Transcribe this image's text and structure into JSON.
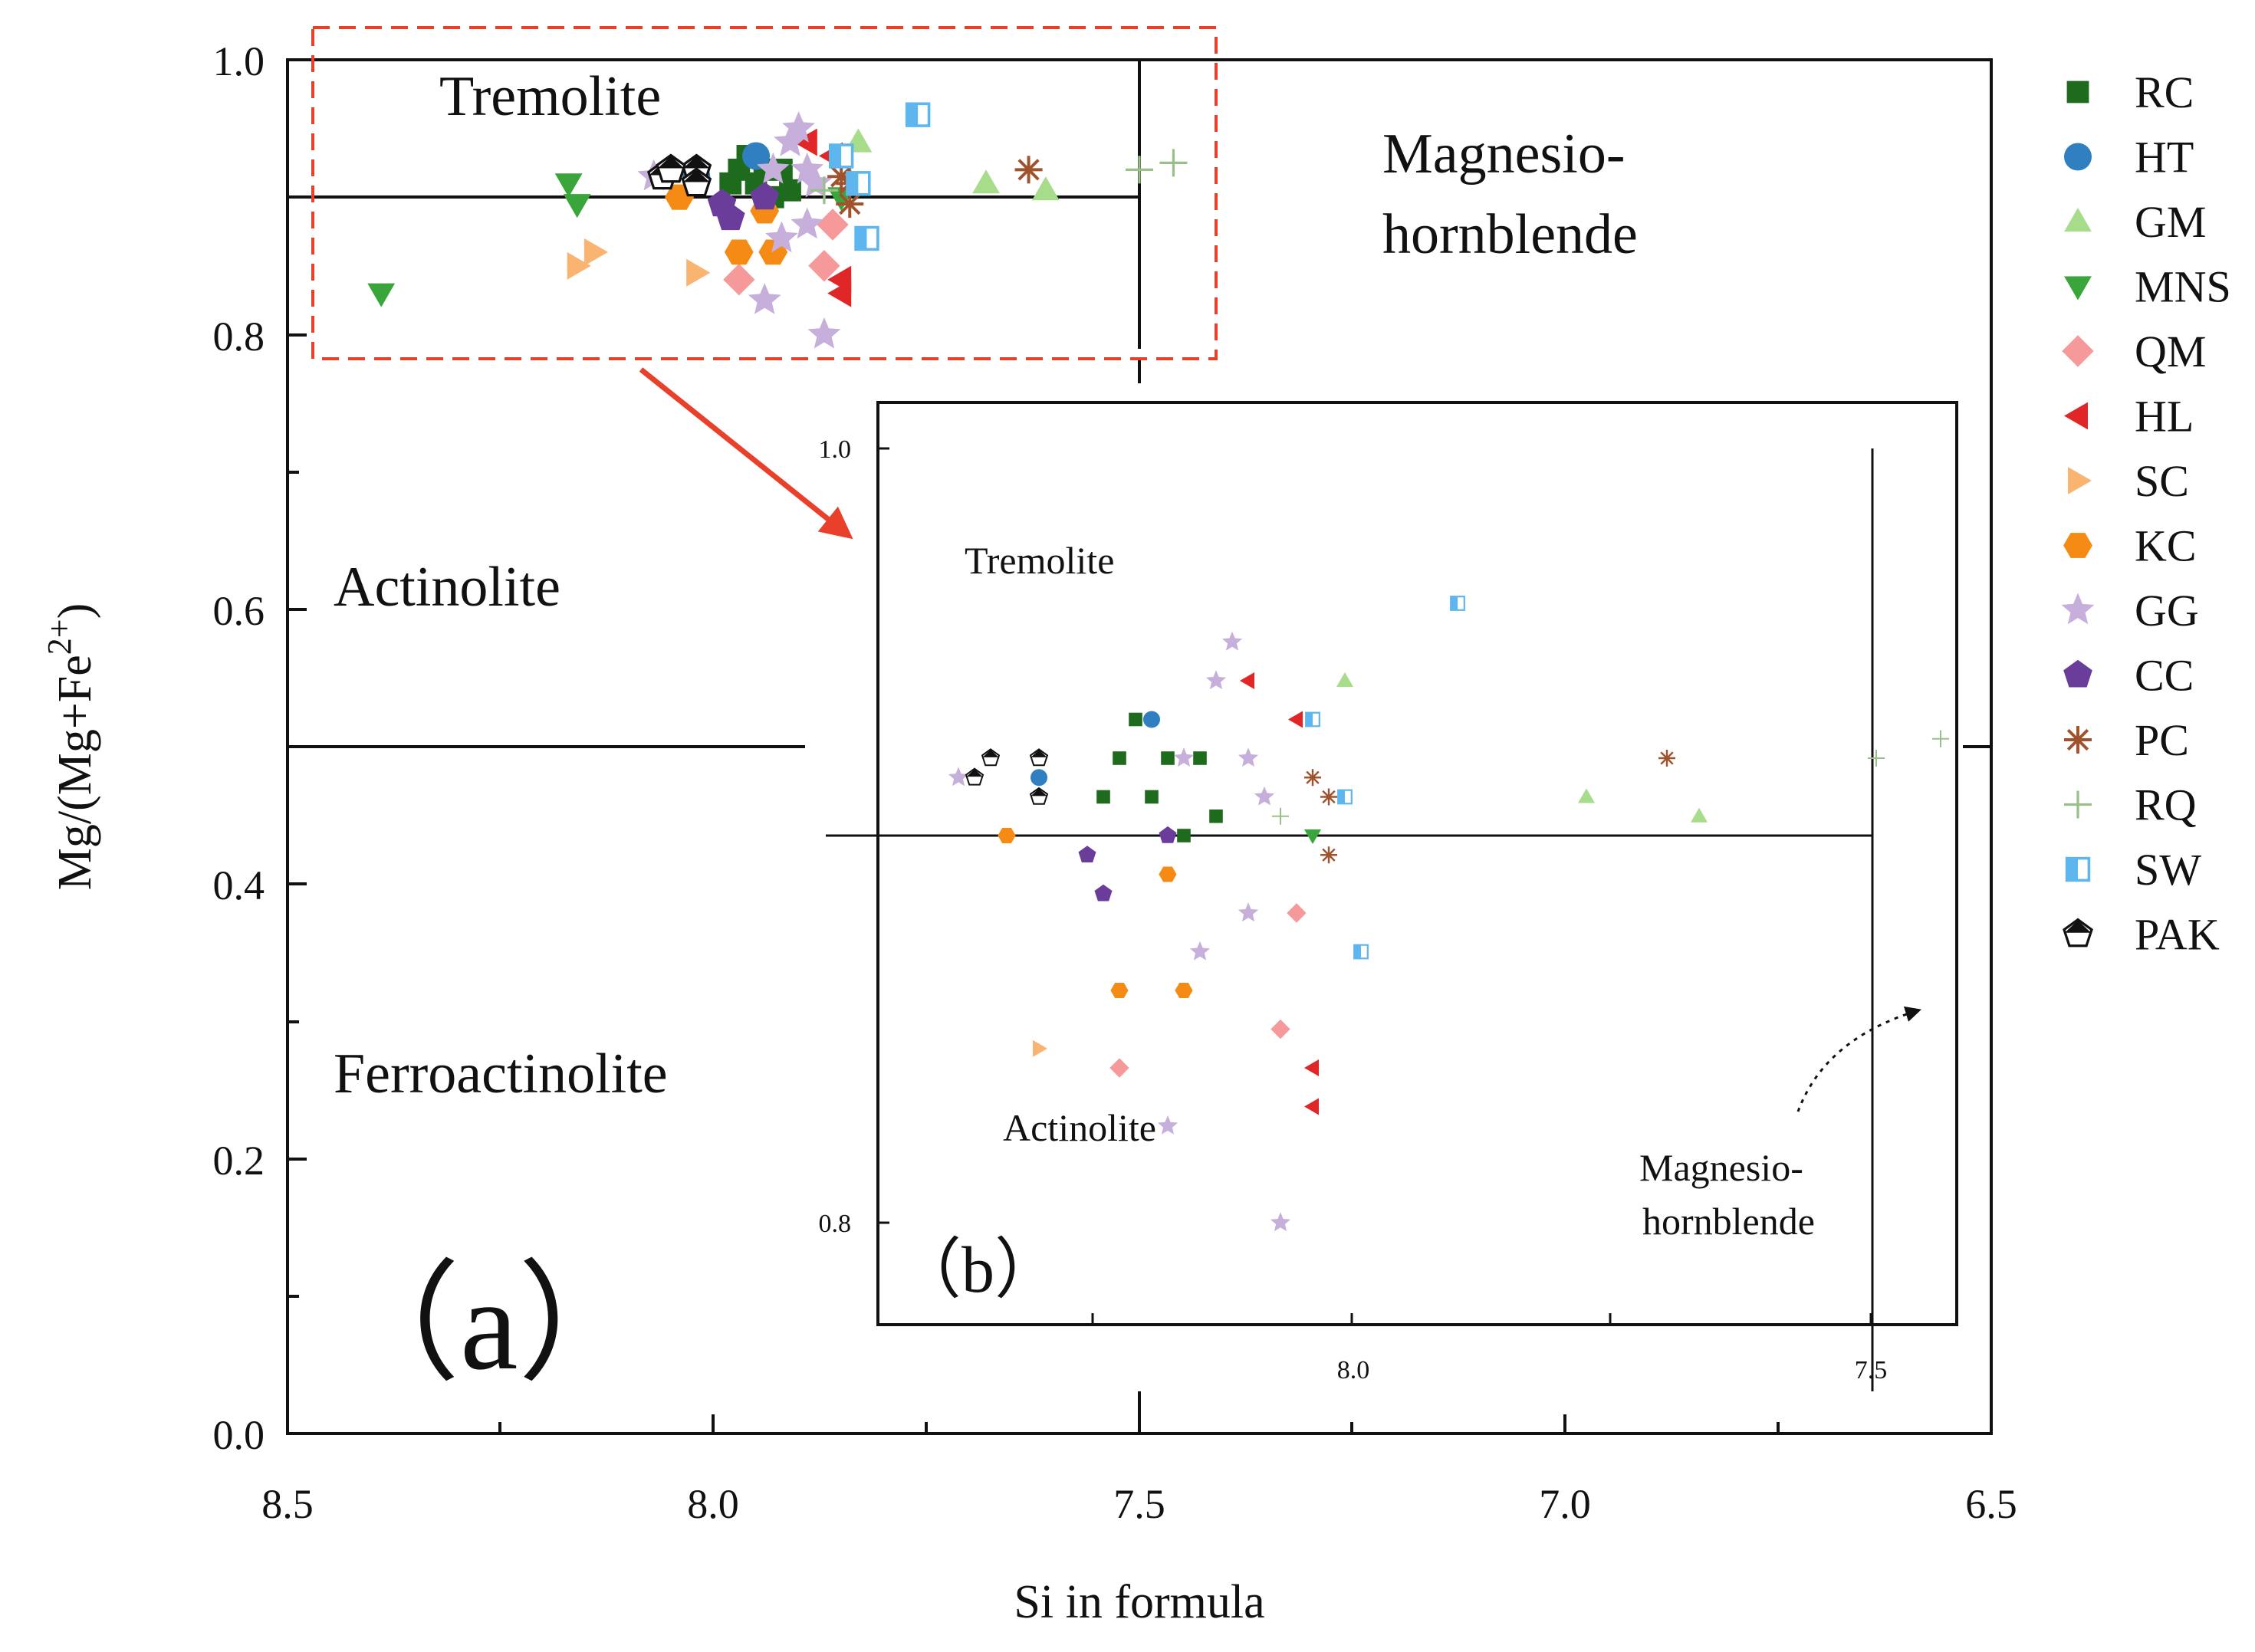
{
  "chart_data": {
    "type": "scatter",
    "xlabel": "Si in formula",
    "ylabel": "Mg/(Mg+Fe",
    "ylabel_sup": "2+",
    "ylabel_close": ")",
    "xlim": [
      8.5,
      6.5
    ],
    "ylim": [
      0.0,
      1.0
    ],
    "xticks": [
      "8.5",
      "8.0",
      "7.5",
      "7.0",
      "6.5"
    ],
    "yticks": [
      "0.0",
      "0.2",
      "0.4",
      "0.6",
      "0.8",
      "1.0"
    ],
    "panel_label": "（a）",
    "regions": {
      "tremolite": "Tremolite",
      "actinolite": "Actinolite",
      "ferroactinolite": "Ferroactinolite",
      "magnesio": "Magnesio-",
      "hornblende": "hornblende"
    },
    "series": [
      {
        "name": "RC",
        "marker": "square",
        "color": "#1e6b1e",
        "points": [
          [
            7.97,
            0.92
          ],
          [
            7.98,
            0.91
          ],
          [
            7.96,
            0.93
          ],
          [
            7.95,
            0.91
          ],
          [
            7.94,
            0.92
          ],
          [
            7.93,
            0.9
          ],
          [
            7.92,
            0.92
          ],
          [
            7.91,
            0.905
          ]
        ]
      },
      {
        "name": "HT",
        "marker": "circle",
        "color": "#2f7fc1",
        "points": [
          [
            7.95,
            0.93
          ],
          [
            8.02,
            0.915
          ]
        ]
      },
      {
        "name": "GM",
        "marker": "triangle-up",
        "color": "#a6dc8a",
        "points": [
          [
            7.83,
            0.94
          ],
          [
            7.68,
            0.91
          ],
          [
            7.61,
            0.905
          ]
        ]
      },
      {
        "name": "MNS",
        "marker": "triangle-down",
        "color": "#3aa53a",
        "points": [
          [
            8.39,
            0.83
          ],
          [
            8.17,
            0.91
          ],
          [
            8.16,
            0.895
          ],
          [
            7.85,
            0.9
          ]
        ]
      },
      {
        "name": "QM",
        "marker": "diamond",
        "color": "#f5999a",
        "points": [
          [
            7.86,
            0.88
          ],
          [
            7.87,
            0.85
          ],
          [
            7.97,
            0.84
          ]
        ]
      },
      {
        "name": "HL",
        "marker": "triangle-left",
        "color": "#e02626",
        "points": [
          [
            7.85,
            0.84
          ],
          [
            7.85,
            0.83
          ],
          [
            7.89,
            0.94
          ],
          [
            7.86,
            0.93
          ]
        ]
      },
      {
        "name": "SC",
        "marker": "triangle-right",
        "color": "#f8b470",
        "points": [
          [
            8.16,
            0.85
          ],
          [
            8.14,
            0.86
          ],
          [
            8.02,
            0.845
          ]
        ]
      },
      {
        "name": "KC",
        "marker": "hexagon",
        "color": "#f58a14",
        "points": [
          [
            7.97,
            0.86
          ],
          [
            7.93,
            0.86
          ],
          [
            8.04,
            0.9
          ],
          [
            8.04,
            0.9
          ],
          [
            7.94,
            0.89
          ]
        ]
      },
      {
        "name": "GG",
        "marker": "star",
        "color": "#c6afdb",
        "points": [
          [
            7.9,
            0.95
          ],
          [
            7.91,
            0.94
          ],
          [
            7.93,
            0.92
          ],
          [
            7.89,
            0.92
          ],
          [
            7.88,
            0.91
          ],
          [
            7.92,
            0.87
          ],
          [
            7.89,
            0.88
          ],
          [
            7.94,
            0.825
          ],
          [
            7.87,
            0.8
          ],
          [
            8.07,
            0.915
          ]
        ]
      },
      {
        "name": "CC",
        "marker": "pentagon",
        "color": "#6a3d9a",
        "points": [
          [
            7.99,
            0.895
          ],
          [
            7.98,
            0.885
          ],
          [
            7.94,
            0.9
          ]
        ]
      },
      {
        "name": "PC",
        "marker": "asterisk",
        "color": "#a0522d",
        "points": [
          [
            7.84,
            0.91
          ],
          [
            7.85,
            0.915
          ],
          [
            7.84,
            0.895
          ],
          [
            7.63,
            0.92
          ]
        ]
      },
      {
        "name": "RQ",
        "marker": "plus",
        "color": "#9bbf8a",
        "points": [
          [
            7.5,
            0.92
          ],
          [
            7.46,
            0.925
          ],
          [
            7.87,
            0.905
          ]
        ]
      },
      {
        "name": "SW",
        "marker": "half-square",
        "color": "#5eb6ef",
        "points": [
          [
            7.76,
            0.96
          ],
          [
            7.85,
            0.93
          ],
          [
            7.83,
            0.91
          ],
          [
            7.82,
            0.87
          ]
        ]
      },
      {
        "name": "PAK",
        "marker": "house",
        "color": "#111111",
        "points": [
          [
            8.06,
            0.915
          ],
          [
            8.02,
            0.92
          ],
          [
            8.02,
            0.91
          ],
          [
            8.05,
            0.92
          ]
        ]
      }
    ],
    "inset": {
      "panel_label": "（b）",
      "xticks": [
        "8.0",
        "7.5"
      ],
      "yticks": [
        "1.0",
        "0.8"
      ],
      "regions": {
        "tremolite": "Tremolite",
        "actinolite": "Actinolite",
        "magnesio": "Magnesio-",
        "hornblende": "hornblende"
      }
    },
    "legend": [
      "RC",
      "HT",
      "GM",
      "MNS",
      "QM",
      "HL",
      "SC",
      "KC",
      "GG",
      "CC",
      "PC",
      "RQ",
      "SW",
      "PAK"
    ],
    "legend_position": "right"
  }
}
